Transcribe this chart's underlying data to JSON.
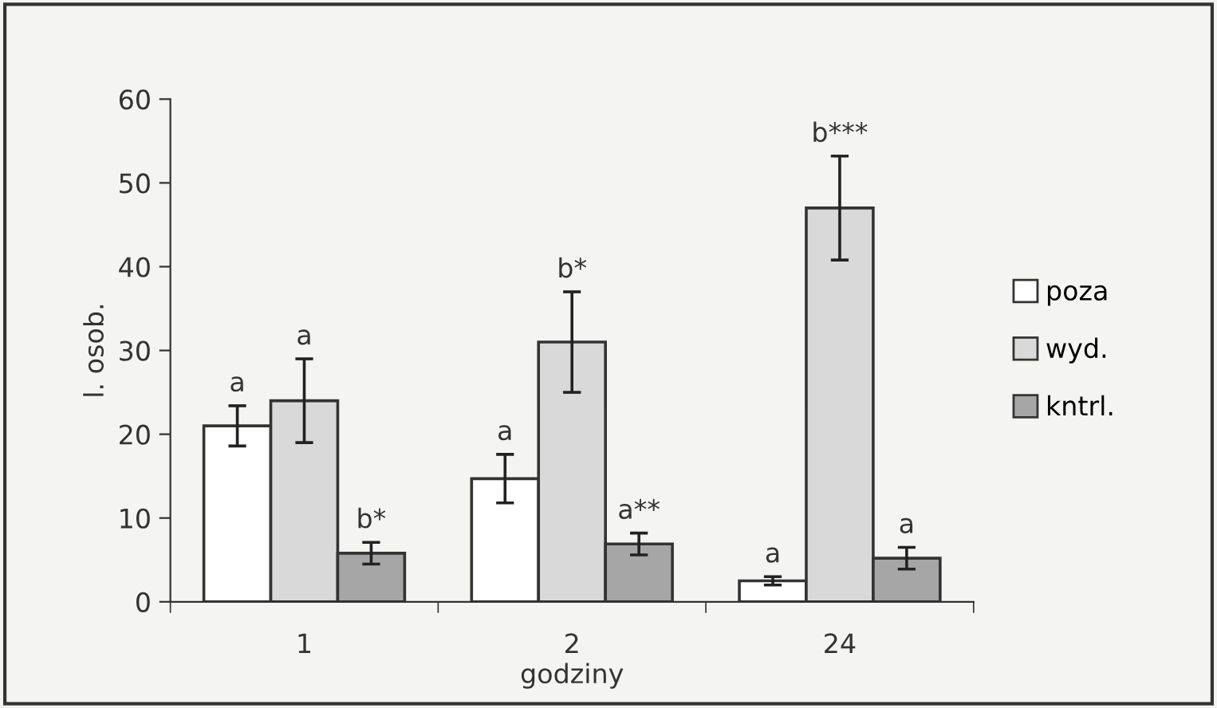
{
  "chart_data": {
    "type": "bar",
    "xlabel": "godziny",
    "ylabel": "l. osob.",
    "categories": [
      "1",
      "2",
      "24"
    ],
    "series": [
      {
        "name": "poza",
        "color": "#ffffff",
        "values": [
          21,
          14.7,
          2.5
        ],
        "errors": [
          2.4,
          2.9,
          0.5
        ],
        "value_labels": [
          "a",
          "a",
          "a"
        ]
      },
      {
        "name": "wyd.",
        "color": "#d9d9d9",
        "values": [
          24,
          31,
          47
        ],
        "errors": [
          5,
          6,
          6.2
        ],
        "value_labels": [
          "a",
          "b*",
          "b***"
        ]
      },
      {
        "name": "kntrl.",
        "color": "#a6a6a6",
        "values": [
          5.8,
          6.9,
          5.2
        ],
        "errors": [
          1.3,
          1.3,
          1.3
        ],
        "value_labels": [
          "b*",
          "a**",
          "a"
        ]
      }
    ],
    "ylim": [
      0,
      60
    ],
    "yticks": [
      0,
      10,
      20,
      30,
      40,
      50,
      60
    ],
    "grid": false,
    "legend": "right"
  }
}
